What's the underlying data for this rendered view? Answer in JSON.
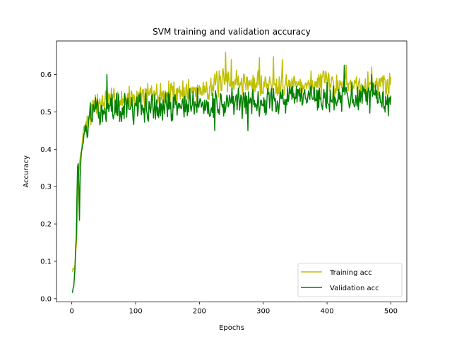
{
  "chart_data": {
    "type": "line",
    "title": "SVM training and validation accuracy",
    "xlabel": "Epochs",
    "ylabel": "Accuracy",
    "xlim": [
      -24,
      525
    ],
    "ylim": [
      -0.009,
      0.69
    ],
    "xticks": [
      0,
      100,
      200,
      300,
      400,
      500
    ],
    "yticks": [
      0.0,
      0.1,
      0.2,
      0.3,
      0.4,
      0.5,
      0.6
    ],
    "ytick_labels": [
      "0.0",
      "0.1",
      "0.2",
      "0.3",
      "0.4",
      "0.5",
      "0.6"
    ],
    "grid": false,
    "legend_position": "lower-right",
    "epochs": 500,
    "series": [
      {
        "name": "Training acc",
        "color": "#bfbf00",
        "keypoints": [
          [
            1,
            0.07
          ],
          [
            5,
            0.09
          ],
          [
            8,
            0.17
          ],
          [
            10,
            0.3
          ],
          [
            12,
            0.36
          ],
          [
            15,
            0.4
          ],
          [
            18,
            0.45
          ],
          [
            20,
            0.46
          ],
          [
            25,
            0.47
          ],
          [
            30,
            0.5
          ],
          [
            40,
            0.52
          ],
          [
            50,
            0.53
          ],
          [
            60,
            0.53
          ],
          [
            80,
            0.535
          ],
          [
            100,
            0.54
          ],
          [
            120,
            0.545
          ],
          [
            150,
            0.55
          ],
          [
            200,
            0.56
          ],
          [
            240,
            0.58
          ],
          [
            300,
            0.575
          ],
          [
            350,
            0.575
          ],
          [
            400,
            0.575
          ],
          [
            450,
            0.575
          ],
          [
            500,
            0.575
          ]
        ],
        "noise": 0.03,
        "seed": 7,
        "spikes": [
          [
            241,
            0.66
          ],
          [
            250,
            0.64
          ],
          [
            294,
            0.645
          ],
          [
            316,
            0.648
          ],
          [
            330,
            0.64
          ],
          [
            430,
            0.625
          ],
          [
            470,
            0.62
          ]
        ]
      },
      {
        "name": "Validation acc",
        "color": "#008000",
        "keypoints": [
          [
            1,
            0.02
          ],
          [
            4,
            0.05
          ],
          [
            7,
            0.17
          ],
          [
            9,
            0.35
          ],
          [
            10,
            0.37
          ],
          [
            12,
            0.22
          ],
          [
            13,
            0.33
          ],
          [
            15,
            0.39
          ],
          [
            20,
            0.44
          ],
          [
            25,
            0.47
          ],
          [
            30,
            0.49
          ],
          [
            40,
            0.5
          ],
          [
            60,
            0.51
          ],
          [
            100,
            0.51
          ],
          [
            150,
            0.515
          ],
          [
            200,
            0.52
          ],
          [
            250,
            0.525
          ],
          [
            300,
            0.53
          ],
          [
            350,
            0.535
          ],
          [
            400,
            0.535
          ],
          [
            450,
            0.535
          ],
          [
            500,
            0.535
          ]
        ],
        "noise": 0.035,
        "seed": 13,
        "spikes": [
          [
            55,
            0.6
          ],
          [
            224,
            0.45
          ],
          [
            276,
            0.45
          ],
          [
            427,
            0.625
          ],
          [
            470,
            0.6
          ],
          [
            496,
            0.49
          ]
        ]
      }
    ]
  }
}
